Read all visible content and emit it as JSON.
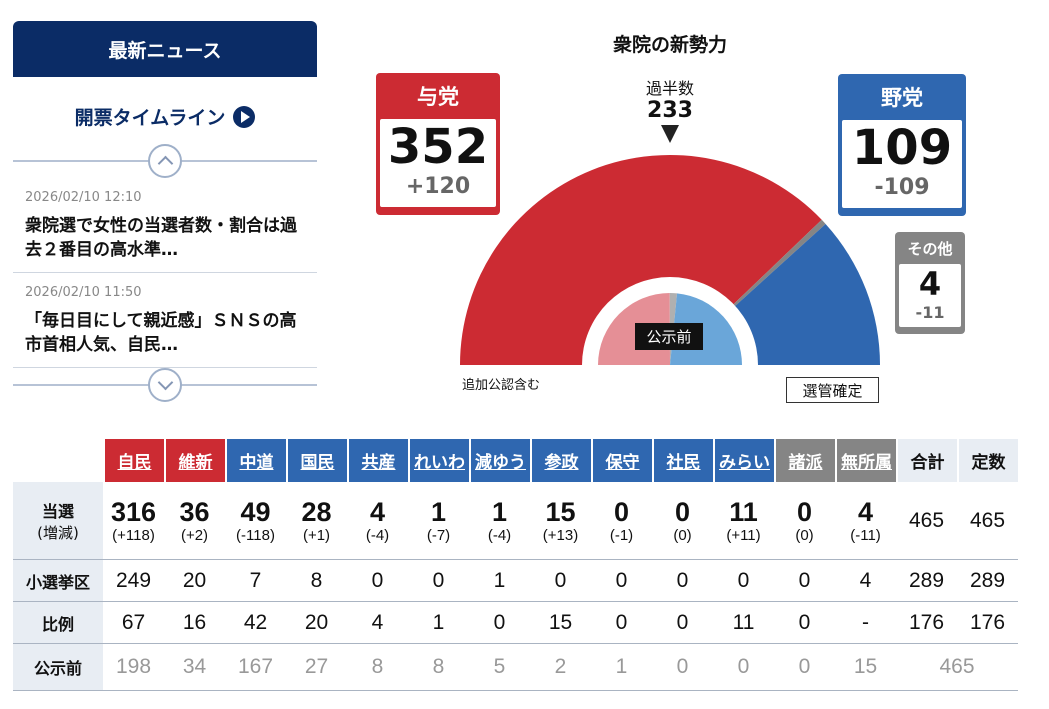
{
  "news": {
    "header": "最新ニュース",
    "timeline_label": "開票タイムライン",
    "items": [
      {
        "time": "2026/02/10 12:10",
        "title": "衆院選で女性の当選者数・割合は過去２番目の高水準…"
      },
      {
        "time": "2026/02/10 11:50",
        "title": "「毎日目にして親近感」ＳＮＳの高市首相人気、自民…"
      }
    ]
  },
  "chart": {
    "title": "衆院の新勢力",
    "ruling": {
      "label": "与党",
      "seats": "352",
      "diff": "+120"
    },
    "opposition": {
      "label": "野党",
      "seats": "109",
      "diff": "-109"
    },
    "other": {
      "label": "その他",
      "seats": "4",
      "diff": "-11"
    },
    "majority": {
      "label": "過半数",
      "value": "233"
    },
    "inner_label": "公示前",
    "note": "追加公認含む",
    "confirm_button": "選管確定",
    "colors": {
      "ruling": "#cc2b33",
      "opposition": "#2f67b0",
      "other": "#858585",
      "ruling_before": "#e58f96",
      "opposition_before": "#6aa6d9"
    }
  },
  "chart_data": {
    "type": "pie",
    "categories": [
      "与党",
      "その他",
      "野党"
    ],
    "values": [
      352,
      4,
      109
    ],
    "before": [
      232,
      15,
      218
    ],
    "total": 465
  },
  "table": {
    "parties": [
      {
        "name": "自民",
        "color": "#cc2b33"
      },
      {
        "name": "維新",
        "color": "#cc2b33"
      },
      {
        "name": "中道",
        "color": "#2f67b0"
      },
      {
        "name": "国民",
        "color": "#2f67b0"
      },
      {
        "name": "共産",
        "color": "#2f67b0"
      },
      {
        "name": "れいわ",
        "color": "#2f67b0"
      },
      {
        "name": "減ゆう",
        "color": "#2f67b0"
      },
      {
        "name": "参政",
        "color": "#2f67b0"
      },
      {
        "name": "保守",
        "color": "#2f67b0"
      },
      {
        "name": "社民",
        "color": "#2f67b0"
      },
      {
        "name": "みらい",
        "color": "#2f67b0"
      },
      {
        "name": "諸派",
        "color": "#858585"
      },
      {
        "name": "無所属",
        "color": "#858585"
      }
    ],
    "total_header": "合計",
    "quota_header": "定数",
    "rows": {
      "won": {
        "label": "当選",
        "sublabel": "(増減)",
        "values": [
          {
            "n": "316",
            "d": "(+118)"
          },
          {
            "n": "36",
            "d": "(+2)"
          },
          {
            "n": "49",
            "d": "(-118)"
          },
          {
            "n": "28",
            "d": "(+1)"
          },
          {
            "n": "4",
            "d": "(-4)"
          },
          {
            "n": "1",
            "d": "(-7)"
          },
          {
            "n": "1",
            "d": "(-4)"
          },
          {
            "n": "15",
            "d": "(+13)"
          },
          {
            "n": "0",
            "d": "(-1)"
          },
          {
            "n": "0",
            "d": "(0)"
          },
          {
            "n": "11",
            "d": "(+11)"
          },
          {
            "n": "0",
            "d": "(0)"
          },
          {
            "n": "4",
            "d": "(-11)"
          }
        ],
        "total": "465",
        "quota": "465"
      },
      "district": {
        "label": "小選挙区",
        "values": [
          "249",
          "20",
          "7",
          "8",
          "0",
          "0",
          "1",
          "0",
          "0",
          "0",
          "0",
          "0",
          "4"
        ],
        "total": "289",
        "quota": "289"
      },
      "pr": {
        "label": "比例",
        "values": [
          "67",
          "16",
          "42",
          "20",
          "4",
          "1",
          "0",
          "15",
          "0",
          "0",
          "11",
          "0",
          "-"
        ],
        "total": "176",
        "quota": "176"
      },
      "before": {
        "label": "公示前",
        "values": [
          "198",
          "34",
          "167",
          "27",
          "8",
          "8",
          "5",
          "2",
          "1",
          "0",
          "0",
          "0",
          "15"
        ],
        "total": "465"
      }
    }
  }
}
